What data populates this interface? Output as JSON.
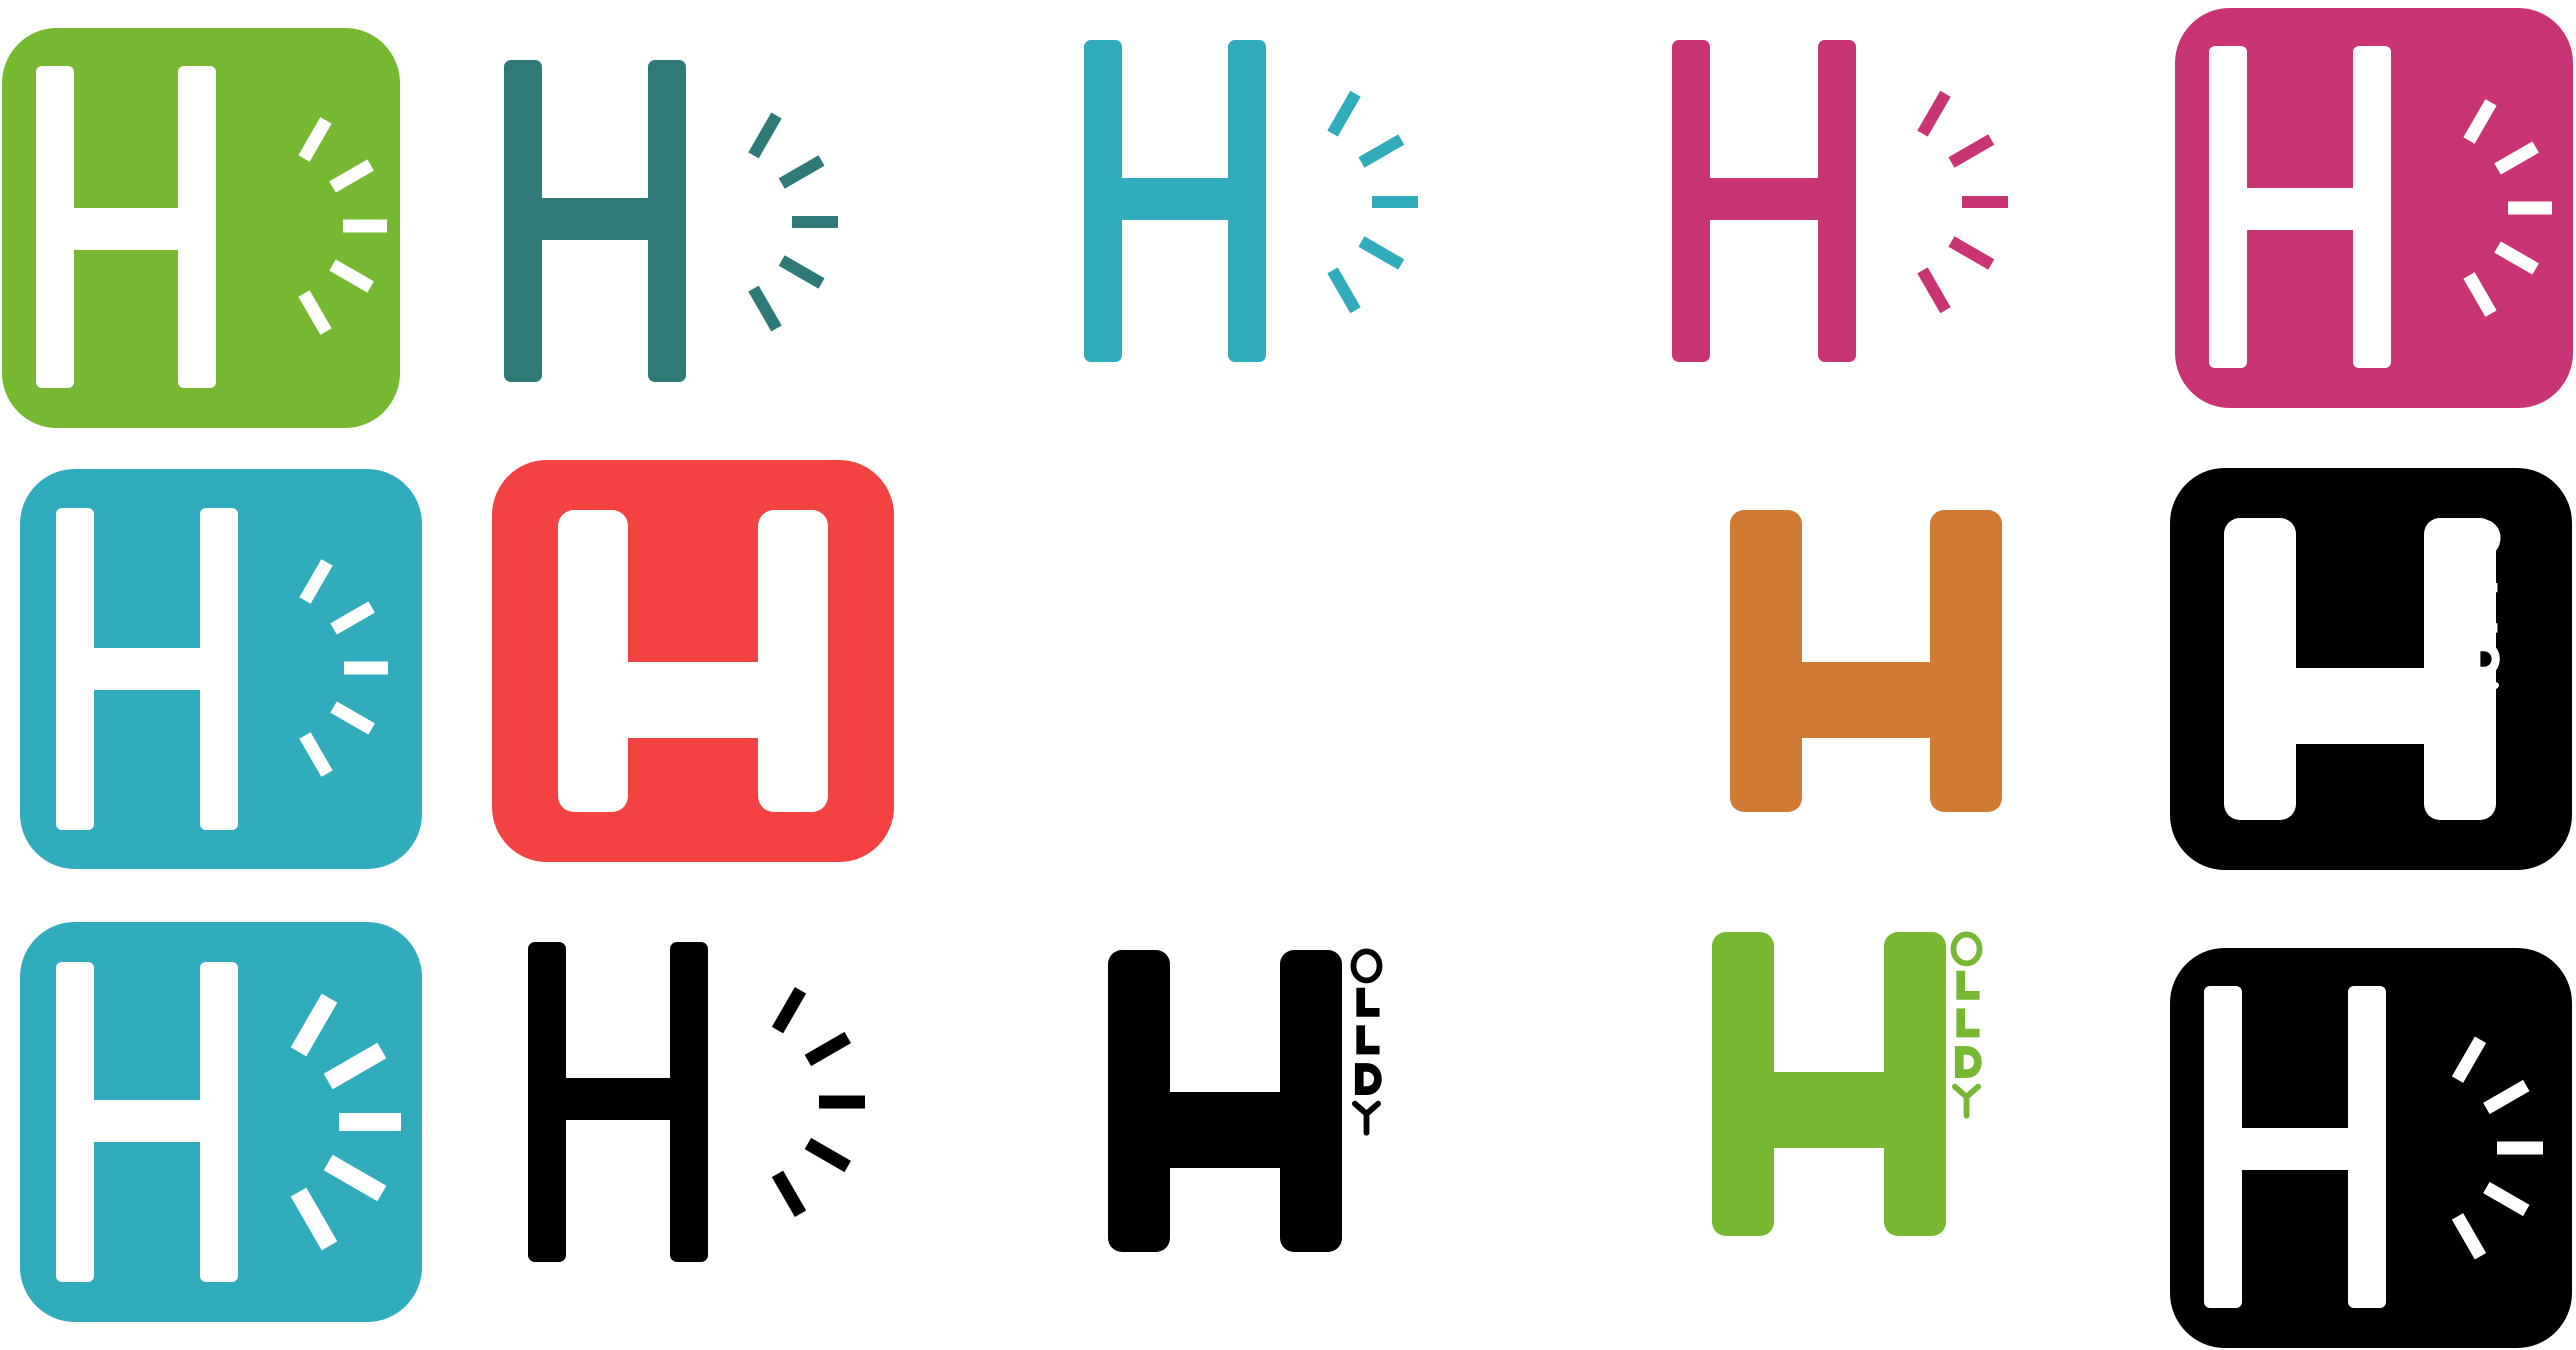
{
  "colors": {
    "green": "#76b832",
    "teal_dark": "#2e7a78",
    "cyan": "#30acbd",
    "magenta": "#c93474",
    "red": "#f44242",
    "orange": "#d07a34",
    "black": "#000000",
    "white": "#ffffff"
  },
  "wordmark_text": "HOLLDY",
  "variants": [
    {
      "id": "green-tile-rays",
      "tile": "green",
      "mark": "white",
      "rays": true
    },
    {
      "id": "darkteal-rays",
      "tile": null,
      "mark": "teal_dark",
      "rays": true
    },
    {
      "id": "cyan-rays",
      "tile": null,
      "mark": "cyan",
      "rays": true
    },
    {
      "id": "magenta-rays",
      "tile": null,
      "mark": "magenta",
      "rays": true
    },
    {
      "id": "magenta-tile-rays",
      "tile": "magenta",
      "mark": "white",
      "rays": true
    },
    {
      "id": "cyan-tile-rays",
      "tile": "cyan",
      "mark": "white",
      "rays": true
    },
    {
      "id": "red-tile-plain",
      "tile": "red",
      "mark": "white",
      "rays": false
    },
    {
      "id": "orange-plain",
      "tile": null,
      "mark": "orange",
      "rays": false
    },
    {
      "id": "black-tile-wordmark",
      "tile": "black",
      "mark": "white",
      "wordmark": true
    },
    {
      "id": "cyan-tile-bigrays",
      "tile": "cyan",
      "mark": "white",
      "rays": true
    },
    {
      "id": "black-outline-rays",
      "tile": null,
      "mark": "black",
      "rays": true
    },
    {
      "id": "black-wordmark",
      "tile": null,
      "mark": "black",
      "wordmark": true
    },
    {
      "id": "green-wordmark",
      "tile": null,
      "mark": "green",
      "wordmark": true
    },
    {
      "id": "black-tile-rays",
      "tile": "black",
      "mark": "white",
      "rays": true
    }
  ]
}
